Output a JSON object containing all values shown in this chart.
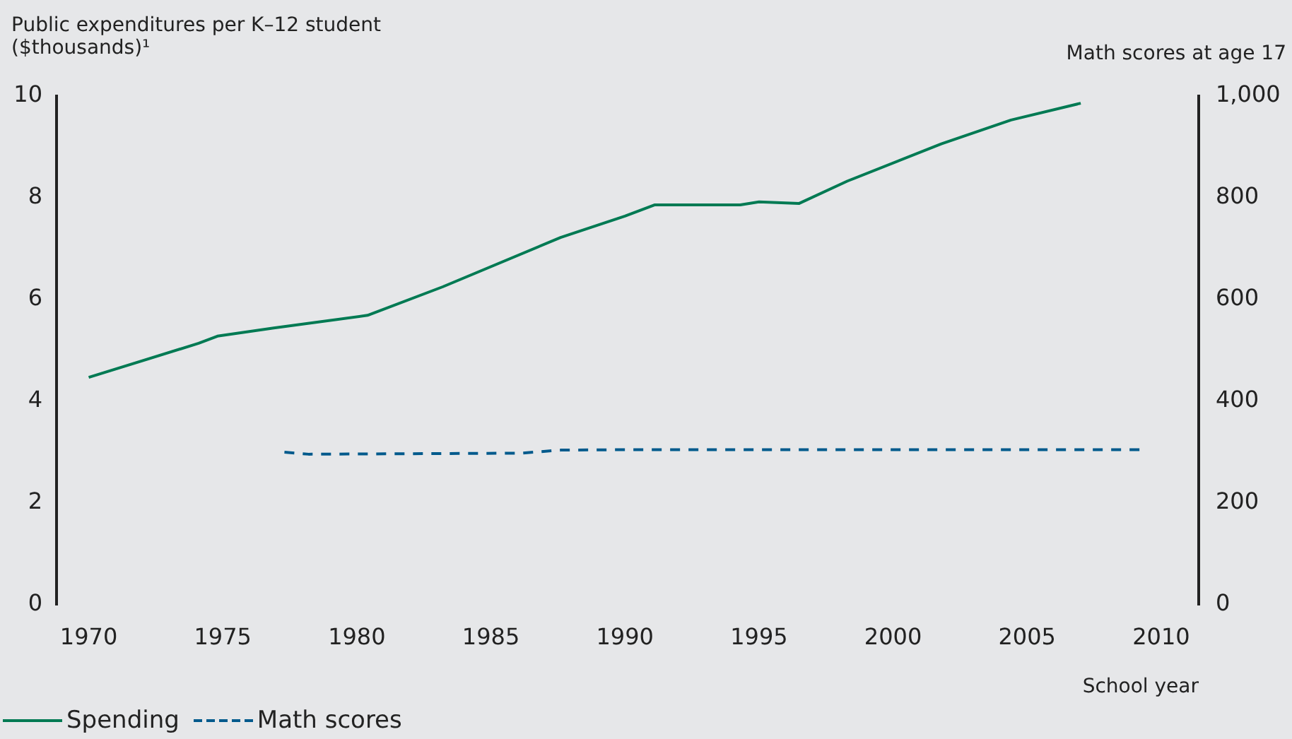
{
  "chart_data": {
    "type": "line",
    "ylabel": "Public expenditures per K–12 student ($thousands)¹",
    "y2label": "Math scores at age 17",
    "xlabel": "School year",
    "xlim": [
      1968.8,
      2011.4
    ],
    "xticks": [
      1970,
      1975,
      1980,
      1985,
      1990,
      1995,
      2000,
      2005,
      2010
    ],
    "ylim": [
      0,
      10
    ],
    "yticks": [
      0,
      2,
      4,
      6,
      8,
      10
    ],
    "y2lim": [
      0,
      1000
    ],
    "y2ticks": [
      0,
      200,
      400,
      600,
      800,
      {
        "value": 1000,
        "label": "1,000"
      }
    ],
    "grid": false,
    "legend": "bottom",
    "marker": "none",
    "series": [
      {
        "name": "Spending",
        "color": "#007a53",
        "line_style": "solid",
        "x": [
          1970,
          1974.1,
          1974.8,
          1976.9,
          1980.4,
          1983.2,
          1987.6,
          1990,
          1991.1,
          1994.3,
          1995,
          1996.5,
          1998.3,
          2001.8,
          2004.4,
          2007
        ],
        "values": [
          4.47,
          5.14,
          5.28,
          5.44,
          5.69,
          6.25,
          7.22,
          7.64,
          7.86,
          7.86,
          7.92,
          7.89,
          8.33,
          9.06,
          9.53,
          9.86
        ]
      },
      {
        "name": "Math scores",
        "color": "#005a8c",
        "line_style": "dashed",
        "axis": "y2",
        "x": [
          1977.3,
          1978.2,
          1986.1,
          1987.6,
          1990.4,
          2009.3
        ],
        "values": [
          300,
          296,
          298,
          304,
          305,
          305
        ]
      }
    ]
  }
}
